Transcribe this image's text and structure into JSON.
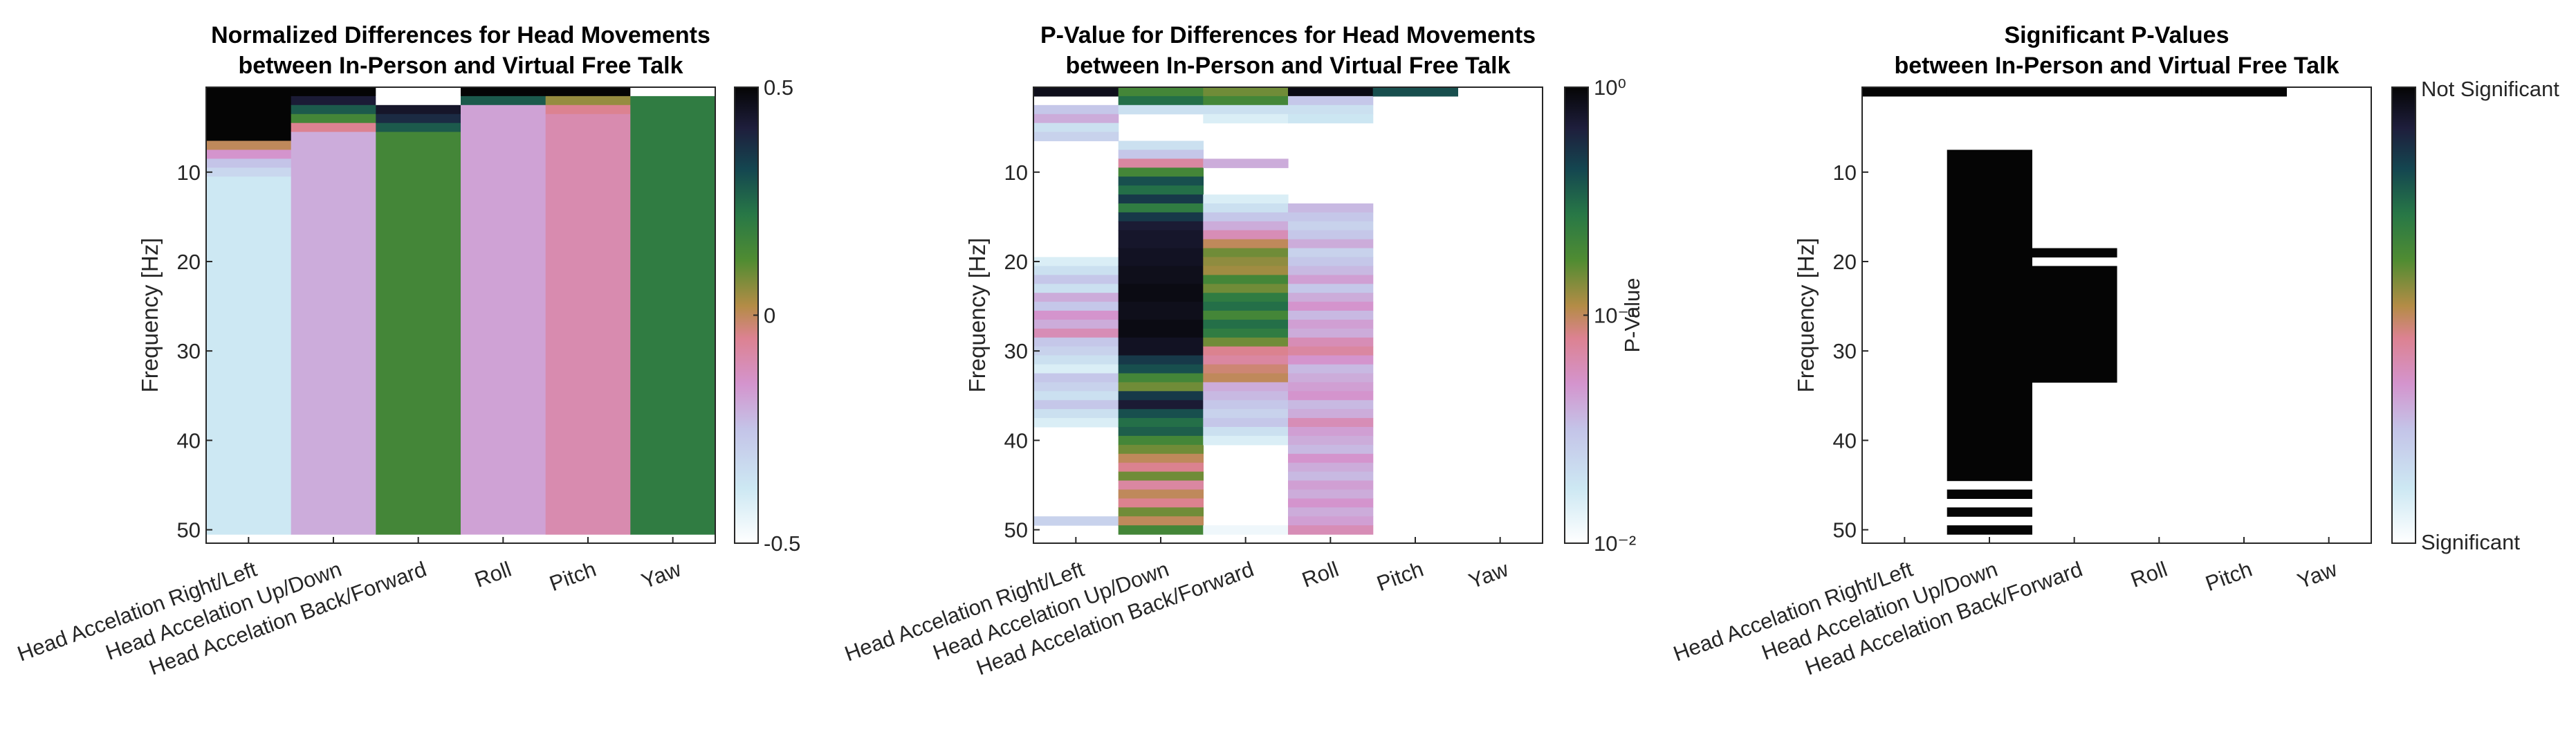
{
  "chart_data": [
    {
      "type": "heatmap",
      "title": [
        "Normalized Differences for Head Movements",
        "between In-Person and Virtual Free Talk"
      ],
      "ylabel": "Frequency [Hz]",
      "categories": [
        "Head Accelation Right/Left",
        "Head Accelation Up/Down",
        "Head Accelation Back/Forward",
        "Roll",
        "Pitch",
        "Yaw"
      ],
      "y_ticks": [
        10,
        20,
        30,
        40,
        50
      ],
      "ylim": [
        0.5,
        51.5
      ],
      "colorbar": {
        "scale": "linear",
        "min": -0.5,
        "max": 0.5,
        "ticks": [
          "0.5",
          "0",
          "-0.5"
        ],
        "tick_values": [
          0.5,
          0,
          -0.5
        ],
        "label": ""
      },
      "columns": [
        [
          [
            1,
            7,
            0.5
          ],
          [
            7,
            8,
            0.0
          ],
          [
            8,
            9,
            -0.15
          ],
          [
            9,
            10,
            -0.25
          ],
          [
            10,
            11,
            -0.32
          ],
          [
            11,
            51,
            -0.38
          ]
        ],
        [
          [
            1,
            2,
            0.5
          ],
          [
            2,
            3,
            0.42
          ],
          [
            3,
            4,
            0.28
          ],
          [
            4,
            5,
            0.15
          ],
          [
            5,
            6,
            -0.05
          ],
          [
            6,
            51,
            -0.2
          ]
        ],
        [
          [
            1,
            2,
            -0.5
          ],
          [
            2,
            3,
            -0.5
          ],
          [
            3,
            4,
            0.44
          ],
          [
            4,
            5,
            0.38
          ],
          [
            5,
            6,
            0.28
          ],
          [
            6,
            51,
            0.15
          ]
        ],
        [
          [
            1,
            2,
            0.5
          ],
          [
            2,
            3,
            0.28
          ],
          [
            3,
            51,
            -0.18
          ]
        ],
        [
          [
            1,
            2,
            0.5
          ],
          [
            2,
            3,
            0.05
          ],
          [
            3,
            4,
            -0.05
          ],
          [
            4,
            51,
            -0.1
          ]
        ],
        [
          [
            1,
            2,
            -0.5
          ],
          [
            2,
            51,
            0.2
          ]
        ]
      ]
    },
    {
      "type": "heatmap",
      "title": [
        "P-Value for Differences for Head Movements",
        "between In-Person and Virtual Free Talk"
      ],
      "ylabel": "Frequency [Hz]",
      "categories": [
        "Head Accelation Right/Left",
        "Head Accelation Up/Down",
        "Head Accelation Back/Forward",
        "Roll",
        "Pitch",
        "Yaw"
      ],
      "y_ticks": [
        10,
        20,
        30,
        40,
        50
      ],
      "ylim": [
        0.5,
        51.5
      ],
      "colorbar": {
        "scale": "log",
        "min": 0.01,
        "max": 1,
        "ticks": [
          "10⁰",
          "10⁻¹",
          "10⁻²"
        ],
        "tick_values": [
          1,
          0.1,
          0.01
        ],
        "label": "P-Value"
      },
      "columns": [
        [
          [
            1,
            2,
            0.85
          ],
          [
            3,
            4,
            0.03
          ],
          [
            4,
            5,
            0.04
          ],
          [
            5,
            6,
            0.02
          ],
          [
            6,
            7,
            0.025
          ],
          [
            20,
            21,
            0.015
          ],
          [
            21,
            22,
            0.02
          ],
          [
            22,
            23,
            0.03
          ],
          [
            23,
            24,
            0.02
          ],
          [
            24,
            25,
            0.04
          ],
          [
            25,
            26,
            0.03
          ],
          [
            26,
            27,
            0.05
          ],
          [
            27,
            28,
            0.04
          ],
          [
            28,
            29,
            0.06
          ],
          [
            29,
            30,
            0.03
          ],
          [
            30,
            31,
            0.025
          ],
          [
            31,
            32,
            0.02
          ],
          [
            32,
            33,
            0.015
          ],
          [
            33,
            34,
            0.03
          ],
          [
            34,
            35,
            0.025
          ],
          [
            35,
            36,
            0.02
          ],
          [
            36,
            37,
            0.03
          ],
          [
            37,
            38,
            0.02
          ],
          [
            38,
            39,
            0.015
          ],
          [
            49,
            50,
            0.025
          ]
        ],
        [
          [
            1,
            2,
            0.2
          ],
          [
            2,
            3,
            0.3
          ],
          [
            3,
            4,
            0.02
          ],
          [
            7,
            8,
            0.02
          ],
          [
            8,
            9,
            0.03
          ],
          [
            9,
            10,
            0.07
          ],
          [
            10,
            11,
            0.2
          ],
          [
            11,
            12,
            0.4
          ],
          [
            12,
            13,
            0.3
          ],
          [
            13,
            14,
            0.5
          ],
          [
            14,
            15,
            0.25
          ],
          [
            15,
            16,
            0.5
          ],
          [
            16,
            17,
            0.7
          ],
          [
            17,
            19,
            0.75
          ],
          [
            19,
            21,
            0.8
          ],
          [
            21,
            23,
            0.85
          ],
          [
            23,
            25,
            0.9
          ],
          [
            25,
            27,
            0.85
          ],
          [
            27,
            29,
            0.9
          ],
          [
            29,
            31,
            0.8
          ],
          [
            31,
            32,
            0.5
          ],
          [
            32,
            33,
            0.4
          ],
          [
            33,
            34,
            0.2
          ],
          [
            34,
            35,
            0.15
          ],
          [
            35,
            36,
            0.5
          ],
          [
            36,
            37,
            0.7
          ],
          [
            37,
            38,
            0.4
          ],
          [
            38,
            39,
            0.3
          ],
          [
            39,
            40,
            0.35
          ],
          [
            40,
            41,
            0.2
          ],
          [
            41,
            42,
            0.15
          ],
          [
            42,
            43,
            0.1
          ],
          [
            43,
            44,
            0.08
          ],
          [
            44,
            45,
            0.15
          ],
          [
            45,
            46,
            0.07
          ],
          [
            46,
            47,
            0.1
          ],
          [
            47,
            48,
            0.08
          ],
          [
            48,
            49,
            0.15
          ],
          [
            49,
            50,
            0.1
          ],
          [
            50,
            51,
            0.2
          ]
        ],
        [
          [
            1,
            2,
            0.15
          ],
          [
            2,
            3,
            0.2
          ],
          [
            3,
            4,
            0.02
          ],
          [
            4,
            5,
            0.015
          ],
          [
            9,
            10,
            0.04
          ],
          [
            13,
            14,
            0.015
          ],
          [
            14,
            15,
            0.02
          ],
          [
            15,
            16,
            0.03
          ],
          [
            16,
            17,
            0.04
          ],
          [
            17,
            18,
            0.06
          ],
          [
            18,
            19,
            0.1
          ],
          [
            19,
            20,
            0.15
          ],
          [
            20,
            21,
            0.13
          ],
          [
            21,
            22,
            0.12
          ],
          [
            22,
            23,
            0.2
          ],
          [
            23,
            24,
            0.15
          ],
          [
            24,
            25,
            0.25
          ],
          [
            25,
            26,
            0.3
          ],
          [
            26,
            27,
            0.2
          ],
          [
            27,
            28,
            0.3
          ],
          [
            28,
            29,
            0.25
          ],
          [
            29,
            30,
            0.15
          ],
          [
            30,
            31,
            0.08
          ],
          [
            31,
            32,
            0.07
          ],
          [
            32,
            33,
            0.09
          ],
          [
            33,
            34,
            0.1
          ],
          [
            34,
            35,
            0.04
          ],
          [
            35,
            36,
            0.035
          ],
          [
            36,
            37,
            0.03
          ],
          [
            37,
            38,
            0.025
          ],
          [
            38,
            39,
            0.03
          ],
          [
            39,
            40,
            0.02
          ],
          [
            40,
            41,
            0.015
          ],
          [
            50,
            51,
            0.012
          ]
        ],
        [
          [
            1,
            2,
            0.9
          ],
          [
            2,
            3,
            0.03
          ],
          [
            3,
            4,
            0.02
          ],
          [
            4,
            5,
            0.018
          ],
          [
            14,
            15,
            0.035
          ],
          [
            15,
            16,
            0.03
          ],
          [
            16,
            17,
            0.025
          ],
          [
            17,
            18,
            0.03
          ],
          [
            18,
            19,
            0.04
          ],
          [
            19,
            20,
            0.025
          ],
          [
            20,
            21,
            0.03
          ],
          [
            21,
            22,
            0.035
          ],
          [
            22,
            23,
            0.045
          ],
          [
            23,
            24,
            0.03
          ],
          [
            24,
            25,
            0.04
          ],
          [
            25,
            26,
            0.05
          ],
          [
            26,
            27,
            0.035
          ],
          [
            27,
            28,
            0.045
          ],
          [
            28,
            29,
            0.04
          ],
          [
            29,
            30,
            0.06
          ],
          [
            30,
            31,
            0.07
          ],
          [
            31,
            32,
            0.05
          ],
          [
            32,
            33,
            0.035
          ],
          [
            33,
            34,
            0.04
          ],
          [
            34,
            35,
            0.045
          ],
          [
            35,
            36,
            0.05
          ],
          [
            36,
            37,
            0.035
          ],
          [
            37,
            38,
            0.04
          ],
          [
            38,
            39,
            0.06
          ],
          [
            39,
            40,
            0.045
          ],
          [
            40,
            41,
            0.04
          ],
          [
            41,
            42,
            0.035
          ],
          [
            42,
            43,
            0.05
          ],
          [
            43,
            44,
            0.04
          ],
          [
            44,
            45,
            0.035
          ],
          [
            45,
            46,
            0.045
          ],
          [
            46,
            47,
            0.04
          ],
          [
            47,
            48,
            0.05
          ],
          [
            48,
            49,
            0.04
          ],
          [
            49,
            50,
            0.045
          ],
          [
            50,
            51,
            0.06
          ]
        ],
        [
          [
            1,
            2,
            0.4
          ]
        ],
        []
      ]
    },
    {
      "type": "heatmap",
      "title": [
        "Significant P-Values",
        "between In-Person and Virtual Free Talk"
      ],
      "ylabel": "Frequency [Hz]",
      "categories": [
        "Head Accelation Right/Left",
        "Head Accelation Up/Down",
        "Head Accelation Back/Forward",
        "Roll",
        "Pitch",
        "Yaw"
      ],
      "y_ticks": [
        10,
        20,
        30,
        40,
        50
      ],
      "ylim": [
        0.5,
        51.5
      ],
      "colorbar": {
        "scale": "binary",
        "ticks": [
          "Not Significant",
          "Significant"
        ],
        "label": ""
      },
      "columns": [
        [
          [
            1,
            2,
            1
          ]
        ],
        [
          [
            1,
            2,
            1
          ],
          [
            8,
            45,
            1
          ],
          [
            46,
            47,
            1
          ],
          [
            48,
            49,
            1
          ],
          [
            50,
            51,
            1
          ]
        ],
        [
          [
            1,
            2,
            1
          ],
          [
            19,
            20,
            1
          ],
          [
            21,
            34,
            1
          ]
        ],
        [
          [
            1,
            2,
            1
          ]
        ],
        [
          [
            1,
            2,
            1
          ]
        ],
        []
      ]
    }
  ]
}
